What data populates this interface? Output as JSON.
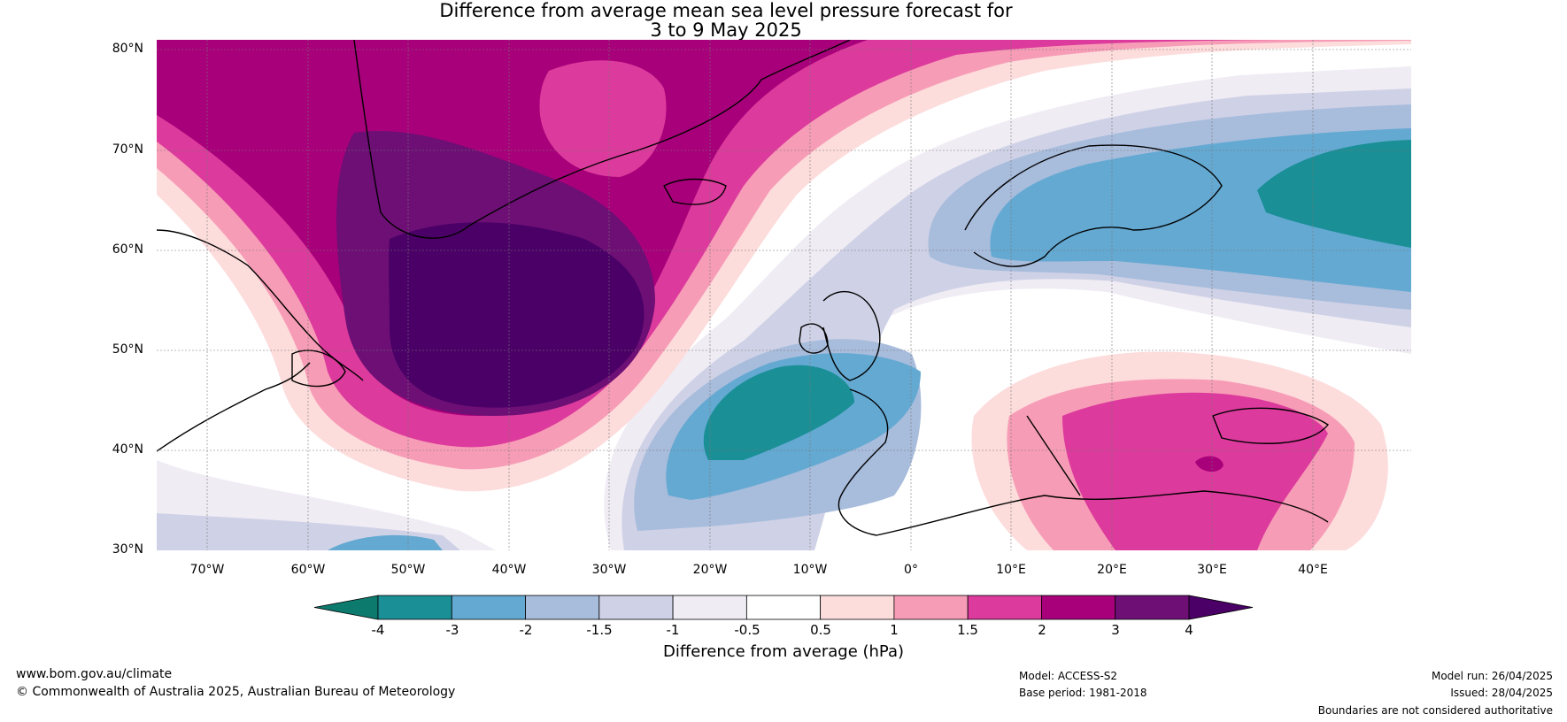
{
  "title": {
    "line1": "Difference from average mean sea level pressure forecast for",
    "line2": "3 to 9 May 2025"
  },
  "map": {
    "lat_labels": [
      "80°N",
      "70°N",
      "60°N",
      "50°N",
      "40°N",
      "30°N"
    ],
    "lon_labels": [
      "70°W",
      "60°W",
      "50°W",
      "40°W",
      "30°W",
      "20°W",
      "10°W",
      "0°",
      "10°E",
      "20°E",
      "30°E",
      "40°E"
    ],
    "anomaly_fields": [
      {
        "region": "Greenland / North Atlantic",
        "level_hpa": ">4",
        "color": "#4a0066"
      },
      {
        "region": "Greenland / North Atlantic",
        "level_hpa": "3 to 4",
        "color": "#6d0f75"
      },
      {
        "region": "Greenland / North Atlantic",
        "level_hpa": "2 to 3",
        "color": "#a8007a"
      },
      {
        "region": "West of Iberia",
        "level_hpa": "-3 to -4",
        "color": "#1a8f96"
      },
      {
        "region": "Scandinavia / NW Russia",
        "level_hpa": "-2 to -3",
        "color": "#64a9d2"
      },
      {
        "region": "Eastern Mediterranean",
        "level_hpa": "1.5 to 2",
        "color": "#dc3a9c"
      }
    ]
  },
  "colorbar": {
    "label": "Difference from average (hPa)",
    "ticks": [
      "-4",
      "-3",
      "-2",
      "-1.5",
      "-1",
      "-0.5",
      "0.5",
      "1",
      "1.5",
      "2",
      "3",
      "4"
    ],
    "colors": [
      "#0d7a6e",
      "#1a8f96",
      "#64a9d2",
      "#a8bcdc",
      "#cfd2e6",
      "#f0ecf4",
      "#ffffff",
      "#fddcdc",
      "#f79cb6",
      "#dc3a9c",
      "#a8007a",
      "#6d0f75",
      "#4a0066"
    ]
  },
  "footer": {
    "website": "www.bom.gov.au/climate",
    "copyright": "© Commonwealth of Australia 2025, Australian Bureau of Meteorology",
    "model": "Model: ACCESS-S2",
    "base_period": "Base period: 1981-2018",
    "model_run": "Model run: 26/04/2025",
    "issued": "Issued: 28/04/2025",
    "disclaimer": "Boundaries are not considered authoritative"
  }
}
